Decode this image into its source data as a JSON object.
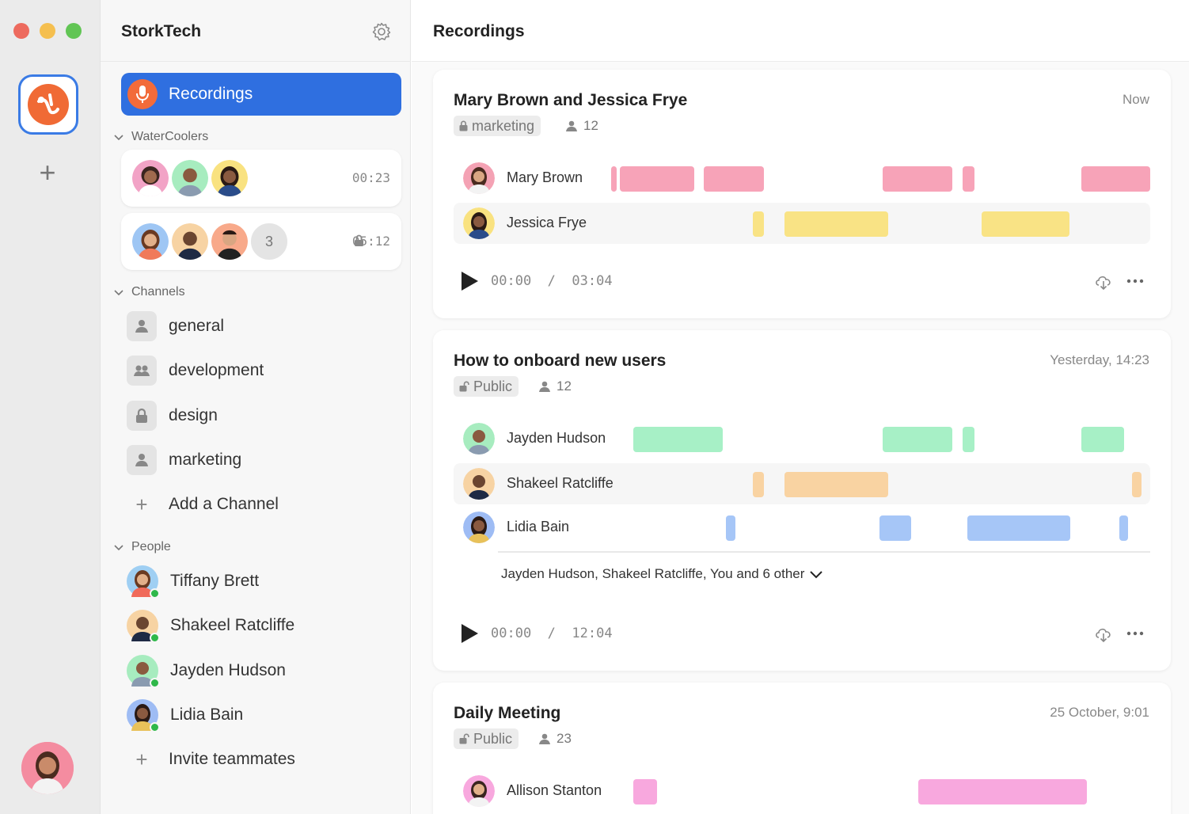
{
  "workspace": {
    "name": "StorkTech"
  },
  "sidebar": {
    "recordings_label": "Recordings",
    "watercoolers_label": "WaterCoolers",
    "watercoolers": [
      {
        "time": "00:23",
        "extra_count": ""
      },
      {
        "time": "05:12",
        "extra_count": "3"
      }
    ],
    "channels_label": "Channels",
    "channels": [
      {
        "label": "general",
        "icon": "person-icon"
      },
      {
        "label": "development",
        "icon": "group-icon"
      },
      {
        "label": "design",
        "icon": "lock-icon"
      },
      {
        "label": "marketing",
        "icon": "person-icon"
      }
    ],
    "add_channel_label": "Add a Channel",
    "people_label": "People",
    "people": [
      {
        "name": "Tiffany Brett"
      },
      {
        "name": "Shakeel Ratcliffe"
      },
      {
        "name": "Jayden Hudson"
      },
      {
        "name": "Lidia Bain"
      }
    ],
    "invite_label": "Invite teammates"
  },
  "main": {
    "title": "Recordings",
    "recordings": [
      {
        "title": "Mary Brown and Jessica Frye",
        "time": "Now",
        "tag": "marketing",
        "members": "12",
        "speakers": [
          {
            "name": "Mary Brown",
            "color": "#f7a3b8"
          },
          {
            "name": "Jessica Frye",
            "color": "#f9e385"
          }
        ],
        "player": {
          "current": "00:00",
          "separator": "/",
          "duration": "03:04"
        }
      },
      {
        "title": "How to onboard new users",
        "time": "Yesterday, 14:23",
        "tag": "Public",
        "members": "12",
        "speakers": [
          {
            "name": "Jayden Hudson",
            "color": "#a7f0c6"
          },
          {
            "name": "Shakeel Ratcliffe",
            "color": "#f9d3a2"
          },
          {
            "name": "Lidia Bain",
            "color": "#a6c6f7"
          }
        ],
        "participants": "Jayden Hudson, Shakeel Ratcliffe, You and 6 other",
        "player": {
          "current": "00:00",
          "separator": "/",
          "duration": "12:04"
        }
      },
      {
        "title": "Daily Meeting",
        "time": "25 October, 9:01",
        "tag": "Public",
        "members": "23",
        "speakers": [
          {
            "name": "Allison Stanton",
            "color": "#f8a8de"
          }
        ]
      }
    ]
  },
  "colors": {
    "accent": "#2f6fe0",
    "brand_orange": "#f06a35",
    "online": "#2fb84a"
  }
}
